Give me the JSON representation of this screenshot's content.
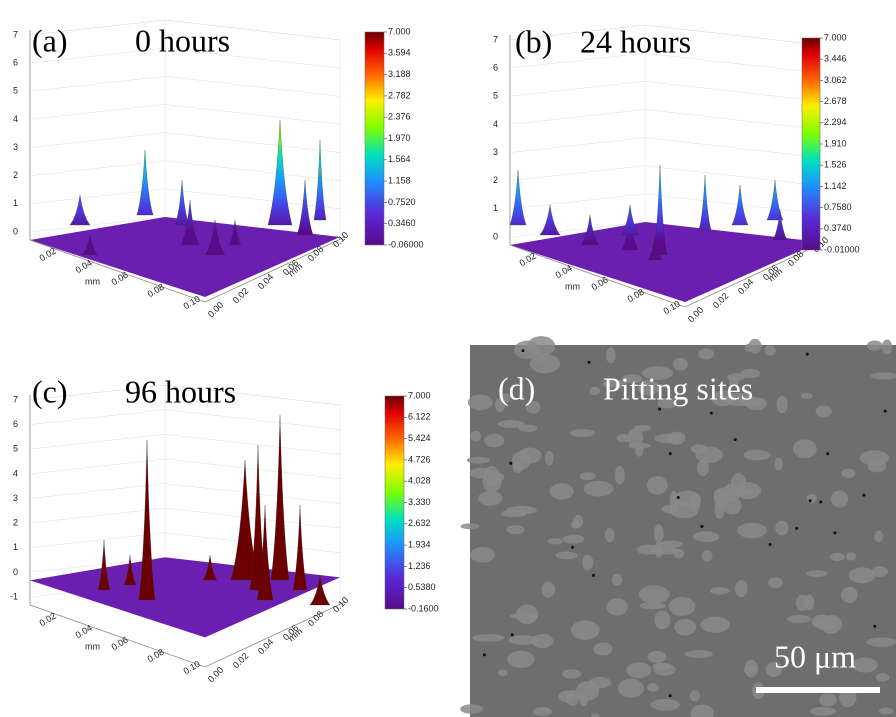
{
  "panels": [
    {
      "label": "(a)",
      "title": "0 hours",
      "colorbar": [
        "7.000",
        "3.594",
        "3.188",
        "2.782",
        "2.376",
        "1.970",
        "1.564",
        "1.158",
        "0.7520",
        "0.3460",
        "-0.06000"
      ],
      "z_ticks": [
        "7",
        "6",
        "5",
        "4",
        "3",
        "2",
        "1",
        "0"
      ],
      "x_ticks": [
        "0.02",
        "0.04",
        "0.06",
        "0.08",
        "0.10"
      ],
      "y_ticks": [
        "0.00",
        "0.02",
        "0.04",
        "0.06",
        "0.08",
        "0.10"
      ],
      "x_axis": "mm",
      "y_axis": "mm"
    },
    {
      "label": "(b)",
      "title": "24 hours",
      "colorbar": [
        "7.000",
        "3.446",
        "3.062",
        "2.678",
        "2.294",
        "1.910",
        "1.526",
        "1.142",
        "0.7580",
        "0.3740",
        "-0.01000"
      ],
      "z_ticks": [
        "7",
        "6",
        "5",
        "4",
        "3",
        "2",
        "1",
        "0"
      ],
      "x_ticks": [
        "0.02",
        "0.04",
        "0.06",
        "0.08",
        "0.10"
      ],
      "y_ticks": [
        "0.00",
        "0.02",
        "0.04",
        "0.06",
        "0.08",
        "0.10"
      ],
      "x_axis": "mm",
      "y_axis": "mm"
    },
    {
      "label": "(c)",
      "title": "96 hours",
      "colorbar": [
        "7.000",
        "6.122",
        "5.424",
        "4.726",
        "4.028",
        "3.330",
        "2.632",
        "1.934",
        "1.236",
        "0.5380",
        "-0.1600"
      ],
      "z_ticks": [
        "7",
        "6",
        "5",
        "4",
        "3",
        "2",
        "1",
        "0",
        "-1"
      ],
      "x_ticks": [
        "0.02",
        "0.04",
        "0.06",
        "0.08",
        "0.10"
      ],
      "y_ticks": [
        "0.00",
        "0.02",
        "0.04",
        "0.06",
        "0.08",
        "0.10"
      ],
      "x_axis": "mm",
      "y_axis": "mm"
    }
  ],
  "sem": {
    "label": "(d)",
    "title": "Pitting sites",
    "scale": "50 μm"
  }
}
